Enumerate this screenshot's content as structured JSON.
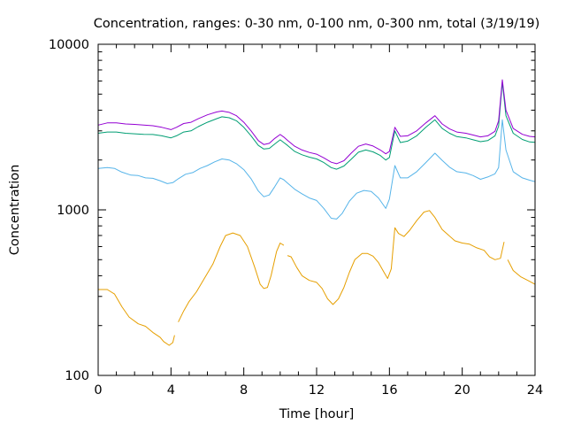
{
  "chart_data": {
    "type": "line",
    "title": "Concentration, ranges: 0-30 nm, 0-100 nm, 0-300 nm, total (3/19/19)",
    "xlabel": "Time [hour]",
    "ylabel": "Concentration",
    "xlim": [
      0,
      24
    ],
    "ylim": [
      100,
      10000
    ],
    "yscale": "log",
    "grid": false,
    "legend": "none",
    "xticks": [
      0,
      4,
      8,
      12,
      16,
      20,
      24
    ],
    "xtick_labels": [
      "0",
      "4",
      "8",
      "12",
      "16",
      "20",
      "24"
    ],
    "xticks_minor": [
      1,
      2,
      3,
      5,
      6,
      7,
      9,
      10,
      11,
      13,
      14,
      15,
      17,
      18,
      19,
      21,
      22,
      23
    ],
    "yticks": [
      100,
      1000,
      10000
    ],
    "ytick_labels": [
      "100",
      "1000",
      "10000"
    ],
    "yticks_minor": [
      200,
      300,
      400,
      500,
      600,
      700,
      800,
      900,
      2000,
      3000,
      4000,
      5000,
      6000,
      7000,
      8000,
      9000
    ],
    "series": [
      {
        "color": "#e69f00",
        "segments": [
          [
            [
              0,
              330
            ],
            [
              0.5,
              330
            ],
            [
              0.9,
              310
            ],
            [
              1.3,
              260
            ],
            [
              1.7,
              225
            ],
            [
              2.2,
              205
            ],
            [
              2.6,
              198
            ],
            [
              3.0,
              182
            ],
            [
              3.4,
              170
            ],
            [
              3.6,
              160
            ],
            [
              3.9,
              152
            ],
            [
              4.1,
              158
            ],
            [
              4.2,
              175
            ]
          ],
          [
            [
              4.4,
              210
            ],
            [
              4.7,
              245
            ],
            [
              5.0,
              280
            ],
            [
              5.4,
              320
            ],
            [
              5.8,
              380
            ],
            [
              6.3,
              470
            ],
            [
              6.7,
              600
            ],
            [
              7.0,
              700
            ],
            [
              7.4,
              725
            ],
            [
              7.8,
              700
            ],
            [
              8.2,
              600
            ],
            [
              8.6,
              450
            ],
            [
              8.9,
              355
            ],
            [
              9.1,
              335
            ],
            [
              9.3,
              340
            ],
            [
              9.5,
              400
            ],
            [
              9.8,
              560
            ],
            [
              10.0,
              630
            ],
            [
              10.2,
              610
            ]
          ],
          [
            [
              10.4,
              530
            ],
            [
              10.6,
              520
            ],
            [
              10.9,
              450
            ],
            [
              11.2,
              400
            ],
            [
              11.6,
              375
            ],
            [
              12.0,
              365
            ],
            [
              12.3,
              335
            ],
            [
              12.6,
              290
            ],
            [
              12.9,
              268
            ],
            [
              13.2,
              290
            ],
            [
              13.5,
              340
            ],
            [
              13.8,
              420
            ],
            [
              14.1,
              500
            ],
            [
              14.5,
              545
            ],
            [
              14.8,
              545
            ],
            [
              15.1,
              525
            ],
            [
              15.4,
              480
            ],
            [
              15.7,
              420
            ],
            [
              15.9,
              385
            ],
            [
              16.1,
              440
            ],
            [
              16.3,
              780
            ],
            [
              16.5,
              720
            ],
            [
              16.8,
              690
            ],
            [
              17.1,
              750
            ],
            [
              17.5,
              860
            ],
            [
              17.9,
              970
            ],
            [
              18.2,
              990
            ],
            [
              18.5,
              900
            ],
            [
              18.9,
              760
            ],
            [
              19.2,
              710
            ],
            [
              19.6,
              650
            ],
            [
              20.0,
              630
            ],
            [
              20.4,
              620
            ],
            [
              20.8,
              590
            ],
            [
              21.2,
              570
            ],
            [
              21.5,
              520
            ],
            [
              21.8,
              500
            ],
            [
              22.1,
              510
            ],
            [
              22.3,
              640
            ]
          ],
          [
            [
              22.5,
              500
            ],
            [
              22.8,
              430
            ],
            [
              23.2,
              395
            ],
            [
              23.6,
              375
            ],
            [
              24.0,
              355
            ]
          ]
        ]
      },
      {
        "color": "#56b4e9",
        "segments": [
          [
            [
              0,
              1780
            ],
            [
              0.5,
              1800
            ],
            [
              0.9,
              1780
            ],
            [
              1.3,
              1690
            ],
            [
              1.8,
              1620
            ],
            [
              2.2,
              1610
            ],
            [
              2.6,
              1560
            ],
            [
              3.0,
              1550
            ],
            [
              3.4,
              1500
            ],
            [
              3.8,
              1440
            ],
            [
              4.1,
              1460
            ],
            [
              4.4,
              1540
            ],
            [
              4.8,
              1640
            ],
            [
              5.2,
              1680
            ],
            [
              5.6,
              1780
            ],
            [
              6.0,
              1850
            ],
            [
              6.4,
              1950
            ],
            [
              6.8,
              2030
            ],
            [
              7.2,
              2000
            ],
            [
              7.6,
              1900
            ],
            [
              8.0,
              1750
            ],
            [
              8.4,
              1540
            ],
            [
              8.8,
              1300
            ],
            [
              9.1,
              1200
            ],
            [
              9.4,
              1230
            ],
            [
              9.7,
              1380
            ],
            [
              10.0,
              1560
            ],
            [
              10.2,
              1520
            ],
            [
              10.4,
              1450
            ],
            [
              10.8,
              1330
            ],
            [
              11.2,
              1250
            ],
            [
              11.6,
              1180
            ],
            [
              12.0,
              1140
            ],
            [
              12.4,
              1020
            ],
            [
              12.8,
              890
            ],
            [
              13.1,
              880
            ],
            [
              13.4,
              950
            ],
            [
              13.8,
              1130
            ],
            [
              14.2,
              1260
            ],
            [
              14.6,
              1310
            ],
            [
              15.0,
              1290
            ],
            [
              15.4,
              1180
            ],
            [
              15.8,
              1020
            ],
            [
              16.0,
              1160
            ],
            [
              16.3,
              1850
            ],
            [
              16.6,
              1560
            ],
            [
              17.0,
              1560
            ],
            [
              17.5,
              1700
            ],
            [
              18.0,
              1930
            ],
            [
              18.5,
              2200
            ],
            [
              18.9,
              1990
            ],
            [
              19.3,
              1810
            ],
            [
              19.7,
              1700
            ],
            [
              20.2,
              1670
            ],
            [
              20.6,
              1610
            ],
            [
              21.0,
              1530
            ],
            [
              21.4,
              1580
            ],
            [
              21.8,
              1650
            ],
            [
              22.0,
              1800
            ],
            [
              22.2,
              3500
            ],
            [
              22.4,
              2300
            ],
            [
              22.8,
              1700
            ],
            [
              23.3,
              1560
            ],
            [
              23.7,
              1510
            ],
            [
              24.0,
              1480
            ]
          ]
        ]
      },
      {
        "color": "#009e73",
        "segments": [
          [
            [
              0,
              2900
            ],
            [
              0.5,
              2950
            ],
            [
              1.0,
              2950
            ],
            [
              1.5,
              2900
            ],
            [
              2.0,
              2880
            ],
            [
              2.5,
              2860
            ],
            [
              3.0,
              2850
            ],
            [
              3.5,
              2800
            ],
            [
              4.0,
              2720
            ],
            [
              4.3,
              2800
            ],
            [
              4.7,
              2950
            ],
            [
              5.1,
              3000
            ],
            [
              5.5,
              3180
            ],
            [
              6.0,
              3380
            ],
            [
              6.5,
              3550
            ],
            [
              6.8,
              3650
            ],
            [
              7.2,
              3600
            ],
            [
              7.6,
              3450
            ],
            [
              8.0,
              3150
            ],
            [
              8.4,
              2800
            ],
            [
              8.8,
              2450
            ],
            [
              9.1,
              2330
            ],
            [
              9.4,
              2350
            ],
            [
              9.7,
              2500
            ],
            [
              10.0,
              2650
            ],
            [
              10.2,
              2550
            ],
            [
              10.4,
              2450
            ],
            [
              10.8,
              2250
            ],
            [
              11.2,
              2150
            ],
            [
              11.6,
              2080
            ],
            [
              12.0,
              2030
            ],
            [
              12.4,
              1930
            ],
            [
              12.8,
              1800
            ],
            [
              13.1,
              1760
            ],
            [
              13.5,
              1840
            ],
            [
              13.9,
              2020
            ],
            [
              14.3,
              2230
            ],
            [
              14.7,
              2300
            ],
            [
              15.1,
              2240
            ],
            [
              15.5,
              2130
            ],
            [
              15.8,
              2000
            ],
            [
              16.0,
              2070
            ],
            [
              16.3,
              3000
            ],
            [
              16.6,
              2550
            ],
            [
              17.0,
              2600
            ],
            [
              17.5,
              2800
            ],
            [
              18.0,
              3150
            ],
            [
              18.5,
              3500
            ],
            [
              18.9,
              3100
            ],
            [
              19.3,
              2900
            ],
            [
              19.7,
              2770
            ],
            [
              20.2,
              2720
            ],
            [
              20.6,
              2650
            ],
            [
              21.0,
              2580
            ],
            [
              21.4,
              2620
            ],
            [
              21.8,
              2800
            ],
            [
              22.0,
              3200
            ],
            [
              22.2,
              5900
            ],
            [
              22.4,
              3700
            ],
            [
              22.8,
              2900
            ],
            [
              23.3,
              2660
            ],
            [
              23.7,
              2570
            ],
            [
              24.0,
              2560
            ]
          ]
        ]
      },
      {
        "color": "#9400d3",
        "segments": [
          [
            [
              0,
              3250
            ],
            [
              0.5,
              3350
            ],
            [
              1.0,
              3350
            ],
            [
              1.5,
              3300
            ],
            [
              2.0,
              3280
            ],
            [
              2.5,
              3250
            ],
            [
              3.0,
              3220
            ],
            [
              3.5,
              3150
            ],
            [
              4.0,
              3050
            ],
            [
              4.3,
              3150
            ],
            [
              4.7,
              3320
            ],
            [
              5.1,
              3380
            ],
            [
              5.5,
              3550
            ],
            [
              6.0,
              3750
            ],
            [
              6.5,
              3900
            ],
            [
              6.8,
              3950
            ],
            [
              7.2,
              3880
            ],
            [
              7.6,
              3700
            ],
            [
              8.0,
              3380
            ],
            [
              8.4,
              3000
            ],
            [
              8.8,
              2620
            ],
            [
              9.1,
              2480
            ],
            [
              9.4,
              2520
            ],
            [
              9.7,
              2700
            ],
            [
              10.0,
              2850
            ],
            [
              10.2,
              2750
            ],
            [
              10.4,
              2630
            ],
            [
              10.8,
              2420
            ],
            [
              11.2,
              2300
            ],
            [
              11.6,
              2220
            ],
            [
              12.0,
              2170
            ],
            [
              12.4,
              2060
            ],
            [
              12.8,
              1940
            ],
            [
              13.1,
              1900
            ],
            [
              13.5,
              1980
            ],
            [
              13.9,
              2200
            ],
            [
              14.3,
              2420
            ],
            [
              14.7,
              2500
            ],
            [
              15.1,
              2430
            ],
            [
              15.5,
              2300
            ],
            [
              15.8,
              2180
            ],
            [
              16.0,
              2250
            ],
            [
              16.3,
              3150
            ],
            [
              16.6,
              2780
            ],
            [
              17.0,
              2800
            ],
            [
              17.5,
              3000
            ],
            [
              18.0,
              3350
            ],
            [
              18.5,
              3700
            ],
            [
              18.9,
              3300
            ],
            [
              19.3,
              3080
            ],
            [
              19.7,
              2950
            ],
            [
              20.2,
              2900
            ],
            [
              20.6,
              2830
            ],
            [
              21.0,
              2760
            ],
            [
              21.4,
              2800
            ],
            [
              21.8,
              2980
            ],
            [
              22.0,
              3450
            ],
            [
              22.2,
              6100
            ],
            [
              22.4,
              4000
            ],
            [
              22.8,
              3100
            ],
            [
              23.3,
              2860
            ],
            [
              23.7,
              2780
            ],
            [
              24.0,
              2760
            ]
          ]
        ]
      }
    ]
  }
}
